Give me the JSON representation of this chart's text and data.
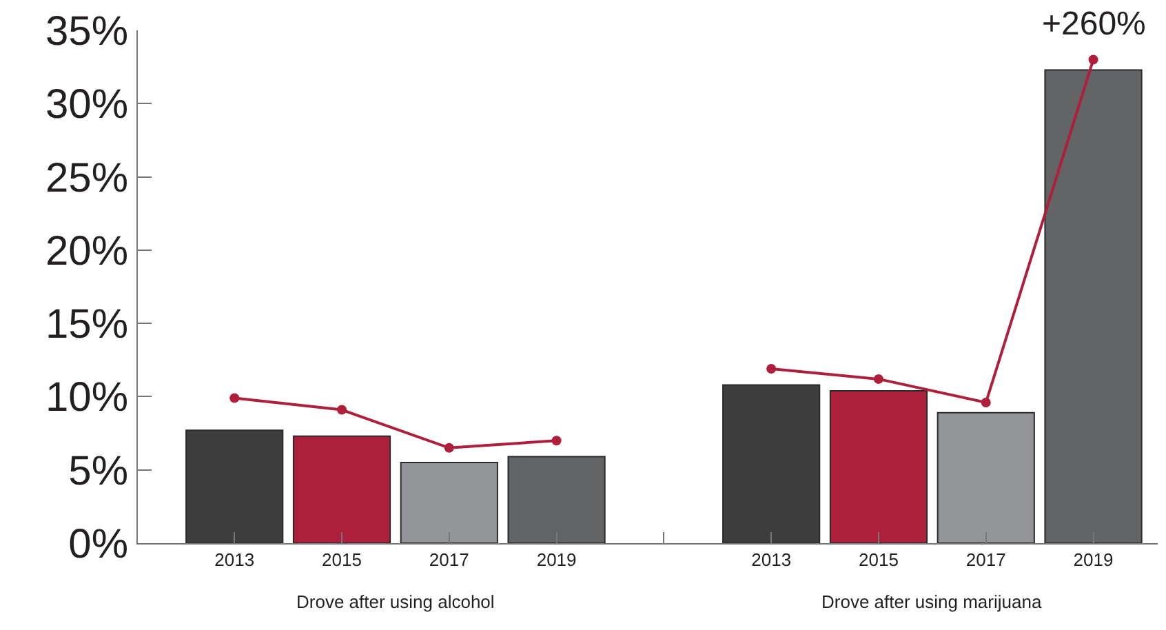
{
  "chart_data": {
    "type": "bar",
    "categories": [
      "2013",
      "2015",
      "2017",
      "2019",
      null,
      "2013",
      "2015",
      "2017",
      "2019"
    ],
    "series": [
      {
        "values": [
          7.7,
          7.3,
          5.5,
          5.9,
          null,
          10.8,
          10.4,
          8.9,
          32.3
        ],
        "colors": [
          "#3d3d3e",
          "#ae1f3c",
          "#939598",
          "#636466",
          null,
          "#3d3d3e",
          "#ae1f3c",
          "#939598",
          "#636466"
        ]
      },
      {
        "type": "line",
        "color": "#ae1f3c",
        "values": [
          9.9,
          9.1,
          6.5,
          7.0,
          null,
          null,
          null,
          null,
          null
        ]
      },
      {
        "type": "line",
        "color": "#ae1f3c",
        "values": [
          null,
          null,
          null,
          null,
          null,
          11.9,
          11.2,
          9.6,
          33.0
        ]
      }
    ],
    "ylim": [
      0,
      35
    ],
    "yticks": [
      {
        "value": 0,
        "label": "0%"
      },
      {
        "value": 5,
        "label": "5%"
      },
      {
        "value": 10,
        "label": "10%"
      },
      {
        "value": 15,
        "label": "15%"
      },
      {
        "value": 20,
        "label": "20%"
      },
      {
        "value": 25,
        "label": "25%"
      },
      {
        "value": 30,
        "label": "30%"
      },
      {
        "value": 35,
        "label": "35%"
      }
    ],
    "annotations": [
      "Drove after using alcohol",
      "Drove after using marijuana",
      {
        "text": "+260%",
        "y": 33.0
      }
    ],
    "marker": "circle",
    "line_style": "solid",
    "legend": false
  }
}
